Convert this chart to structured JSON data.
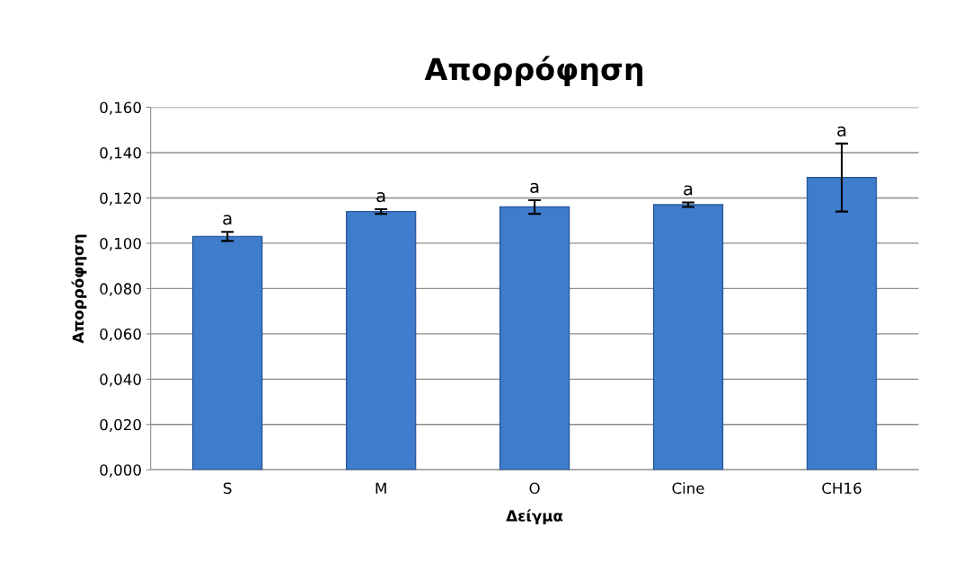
{
  "chart_data": {
    "type": "bar",
    "title": "Απορρόφηση",
    "xlabel": "Δείγμα",
    "ylabel": "Απορρόφηση",
    "categories": [
      "S",
      "M",
      "O",
      "Cine",
      "CH16"
    ],
    "values": [
      0.103,
      0.114,
      0.116,
      0.117,
      0.129
    ],
    "errors": [
      0.002,
      0.001,
      0.003,
      0.001,
      0.015
    ],
    "color": "#3f7ccc",
    "ylim": [
      0,
      0.16
    ],
    "yticks": [
      {
        "value": 0,
        "label": "0,000"
      },
      {
        "value": 0.02,
        "label": "0,020"
      },
      {
        "value": 0.04,
        "label": "0,040"
      },
      {
        "value": 0.06,
        "label": "0,060"
      },
      {
        "value": 0.08,
        "label": "0,080"
      },
      {
        "value": 0.1,
        "label": "0,100"
      },
      {
        "value": 0.12,
        "label": "0,120"
      },
      {
        "value": 0.14,
        "label": "0,140"
      },
      {
        "value": 0.16,
        "label": "0,160"
      }
    ],
    "grid": "y",
    "annotations": [
      {
        "text": "a",
        "x": "S",
        "y": 0.105
      },
      {
        "text": "a",
        "x": "M",
        "y": 0.115
      },
      {
        "text": "a",
        "x": "O",
        "y": 0.119
      },
      {
        "text": "a",
        "x": "Cine",
        "y": 0.118
      },
      {
        "text": "a",
        "x": "CH16",
        "y": 0.144
      }
    ]
  }
}
